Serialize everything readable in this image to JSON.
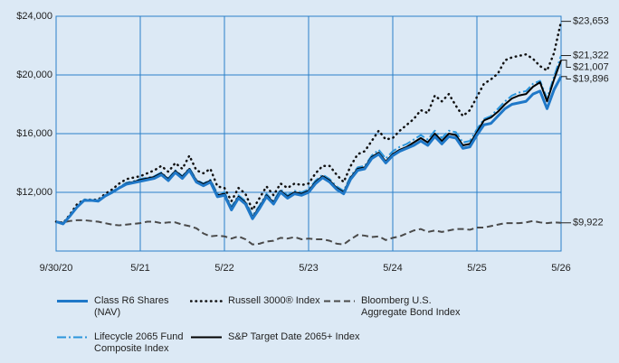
{
  "chart_data": {
    "type": "line",
    "categories": [
      "9/30/20",
      null,
      null,
      null,
      null,
      null,
      null,
      null,
      null,
      null,
      null,
      null,
      "5/21",
      null,
      null,
      null,
      null,
      null,
      null,
      null,
      null,
      null,
      null,
      null,
      "5/22",
      null,
      null,
      null,
      null,
      null,
      null,
      null,
      null,
      null,
      null,
      null,
      "5/23",
      null,
      null,
      null,
      null,
      null,
      null,
      null,
      null,
      null,
      null,
      null,
      "5/24",
      null,
      null,
      null,
      null,
      null,
      null,
      null,
      null,
      null,
      null,
      null,
      "5/25",
      null,
      null,
      null,
      null,
      null,
      null,
      null,
      null,
      null,
      null,
      null,
      "5/26"
    ],
    "ylim": [
      8000,
      24000
    ],
    "yticks": [
      {
        "value": 12000,
        "label": "$12,000"
      },
      {
        "value": 16000,
        "label": "$16,000"
      },
      {
        "value": 20000,
        "label": "$20,000"
      },
      {
        "value": 24000,
        "label": "$24,000"
      }
    ],
    "grid": true,
    "legend": "bottom",
    "series": [
      {
        "name": "Class R6 Shares (NAV)",
        "color": "#1f78c8",
        "line_style": "solid",
        "line_width": 3,
        "values": [
          10000,
          9850,
          10400,
          11000,
          11450,
          11450,
          11400,
          11750,
          12000,
          12300,
          12550,
          12650,
          12750,
          12850,
          12950,
          13200,
          12800,
          13350,
          12950,
          13500,
          12700,
          12450,
          12700,
          11700,
          11800,
          10800,
          11600,
          11200,
          10200,
          10900,
          11700,
          11200,
          12000,
          11600,
          11900,
          11800,
          12000,
          12600,
          13000,
          12700,
          12200,
          11900,
          12900,
          13500,
          13600,
          14300,
          14600,
          14000,
          14500,
          14800,
          15000,
          15200,
          15500,
          15200,
          15800,
          15300,
          15800,
          15700,
          15000,
          15100,
          15900,
          16600,
          16700,
          17200,
          17700,
          18000,
          18100,
          18200,
          18700,
          18900,
          17700,
          19000,
          19896
        ],
        "value_labels": [
          null,
          null,
          null,
          null,
          null,
          null,
          null,
          null,
          null,
          null,
          null,
          null,
          null,
          null,
          null,
          null,
          null,
          null,
          null,
          null,
          null,
          null,
          null,
          null,
          null,
          null,
          null,
          null,
          null,
          null,
          null,
          null,
          null,
          null,
          null,
          null,
          null,
          null,
          null,
          null,
          null,
          null,
          null,
          null,
          null,
          null,
          null,
          null,
          null,
          null,
          null,
          null,
          null,
          null,
          null,
          null,
          null,
          null,
          null,
          null,
          null,
          null,
          null,
          null,
          null,
          null,
          null,
          null,
          null,
          null,
          null,
          null,
          "$19,896"
        ]
      },
      {
        "name": "Russell 3000® Index",
        "color": "#111111",
        "line_style": "dotted",
        "line_width": 2.5,
        "values": [
          10000,
          9900,
          10500,
          11200,
          11500,
          11500,
          11500,
          11900,
          12200,
          12600,
          12900,
          13000,
          13100,
          13300,
          13500,
          13800,
          13400,
          14000,
          13600,
          14500,
          13500,
          13300,
          13600,
          12400,
          12300,
          11400,
          12300,
          11900,
          10800,
          11600,
          12400,
          11800,
          12600,
          12300,
          12600,
          12500,
          12600,
          13300,
          13800,
          13800,
          13200,
          12700,
          13800,
          14600,
          14800,
          15500,
          16200,
          15600,
          15700,
          16200,
          16600,
          17000,
          17600,
          17400,
          18600,
          18200,
          18700,
          17900,
          17200,
          17600,
          18500,
          19400,
          19700,
          20100,
          21000,
          21200,
          21300,
          21400,
          21100,
          20600,
          20300,
          21500,
          23653
        ],
        "value_labels": [
          null,
          null,
          null,
          null,
          null,
          null,
          null,
          null,
          null,
          null,
          null,
          null,
          null,
          null,
          null,
          null,
          null,
          null,
          null,
          null,
          null,
          null,
          null,
          null,
          null,
          null,
          null,
          null,
          null,
          null,
          null,
          null,
          null,
          null,
          null,
          null,
          null,
          null,
          null,
          null,
          null,
          null,
          null,
          null,
          null,
          null,
          null,
          null,
          null,
          null,
          null,
          null,
          null,
          null,
          null,
          null,
          null,
          null,
          null,
          null,
          null,
          null,
          null,
          null,
          null,
          null,
          null,
          null,
          null,
          null,
          null,
          null,
          "$23,653"
        ]
      },
      {
        "name": "Bloomberg U.S. Aggregate Bond Index",
        "color": "#4a4a4a",
        "line_style": "dashed",
        "line_width": 2,
        "values": [
          10000,
          9950,
          10050,
          10100,
          10100,
          10050,
          10000,
          9900,
          9800,
          9750,
          9800,
          9850,
          9900,
          10000,
          10000,
          9900,
          9950,
          9950,
          9800,
          9700,
          9550,
          9200,
          9000,
          9050,
          9000,
          8850,
          9000,
          8800,
          8450,
          8500,
          8650,
          8700,
          8900,
          8850,
          8950,
          8800,
          8850,
          8800,
          8800,
          8700,
          8500,
          8450,
          8800,
          9100,
          9050,
          8950,
          9000,
          8750,
          8900,
          9000,
          9200,
          9400,
          9500,
          9300,
          9400,
          9300,
          9400,
          9500,
          9500,
          9450,
          9600,
          9600,
          9700,
          9800,
          9900,
          9900,
          9900,
          9950,
          10050,
          9950,
          9900,
          9950,
          9922
        ],
        "value_labels": [
          null,
          null,
          null,
          null,
          null,
          null,
          null,
          null,
          null,
          null,
          null,
          null,
          null,
          null,
          null,
          null,
          null,
          null,
          null,
          null,
          null,
          null,
          null,
          null,
          null,
          null,
          null,
          null,
          null,
          null,
          null,
          null,
          null,
          null,
          null,
          null,
          null,
          null,
          null,
          null,
          null,
          null,
          null,
          null,
          null,
          null,
          null,
          null,
          null,
          null,
          null,
          null,
          null,
          null,
          null,
          null,
          null,
          null,
          null,
          null,
          null,
          null,
          null,
          null,
          null,
          null,
          null,
          null,
          null,
          null,
          null,
          null,
          "$9,922"
        ]
      },
      {
        "name": "Lifecycle 2065 Fund Composite Index",
        "color": "#2b95dc",
        "line_style": "dashdot",
        "line_width": 2,
        "values": [
          10000,
          9900,
          10450,
          11050,
          11500,
          11500,
          11450,
          11800,
          12050,
          12350,
          12650,
          12750,
          12900,
          13000,
          13100,
          13350,
          12950,
          13500,
          13100,
          13650,
          12850,
          12600,
          12850,
          11900,
          12000,
          11000,
          11800,
          11400,
          10400,
          11100,
          11900,
          11400,
          12200,
          11800,
          12100,
          12000,
          12200,
          12800,
          13200,
          12900,
          12400,
          12100,
          13100,
          13700,
          13800,
          14500,
          14900,
          14300,
          14800,
          15100,
          15300,
          15600,
          15900,
          15600,
          16200,
          15700,
          16200,
          16100,
          15400,
          15500,
          16300,
          17000,
          17200,
          17700,
          18200,
          18600,
          18800,
          18900,
          19400,
          19600,
          18400,
          19900,
          21322
        ],
        "value_labels": [
          null,
          null,
          null,
          null,
          null,
          null,
          null,
          null,
          null,
          null,
          null,
          null,
          null,
          null,
          null,
          null,
          null,
          null,
          null,
          null,
          null,
          null,
          null,
          null,
          null,
          null,
          null,
          null,
          null,
          null,
          null,
          null,
          null,
          null,
          null,
          null,
          null,
          null,
          null,
          null,
          null,
          null,
          null,
          null,
          null,
          null,
          null,
          null,
          null,
          null,
          null,
          null,
          null,
          null,
          null,
          null,
          null,
          null,
          null,
          null,
          null,
          null,
          null,
          null,
          null,
          null,
          null,
          null,
          null,
          null,
          null,
          null,
          "$21,322"
        ]
      },
      {
        "name": "S&P Target Date 2065+ Index",
        "color": "#000000",
        "line_style": "solid",
        "line_width": 2,
        "values": [
          10000,
          9900,
          10400,
          11000,
          11450,
          11450,
          11400,
          11750,
          12000,
          12300,
          12600,
          12700,
          12850,
          12950,
          13050,
          13300,
          12900,
          13450,
          13050,
          13600,
          12800,
          12550,
          12800,
          11800,
          11900,
          10900,
          11700,
          11300,
          10300,
          11000,
          11800,
          11300,
          12100,
          11700,
          12000,
          11900,
          12100,
          12700,
          13100,
          12800,
          12300,
          12000,
          13000,
          13600,
          13700,
          14400,
          14700,
          14100,
          14600,
          14900,
          15100,
          15400,
          15700,
          15400,
          16000,
          15500,
          16000,
          15900,
          15200,
          15300,
          16100,
          16900,
          17100,
          17500,
          18000,
          18400,
          18600,
          18700,
          19200,
          19500,
          18200,
          19700,
          21007
        ],
        "value_labels": [
          null,
          null,
          null,
          null,
          null,
          null,
          null,
          null,
          null,
          null,
          null,
          null,
          null,
          null,
          null,
          null,
          null,
          null,
          null,
          null,
          null,
          null,
          null,
          null,
          null,
          null,
          null,
          null,
          null,
          null,
          null,
          null,
          null,
          null,
          null,
          null,
          null,
          null,
          null,
          null,
          null,
          null,
          null,
          null,
          null,
          null,
          null,
          null,
          null,
          null,
          null,
          null,
          null,
          null,
          null,
          null,
          null,
          null,
          null,
          null,
          null,
          null,
          null,
          null,
          null,
          null,
          null,
          null,
          null,
          null,
          null,
          null,
          "$21,007"
        ]
      }
    ]
  }
}
